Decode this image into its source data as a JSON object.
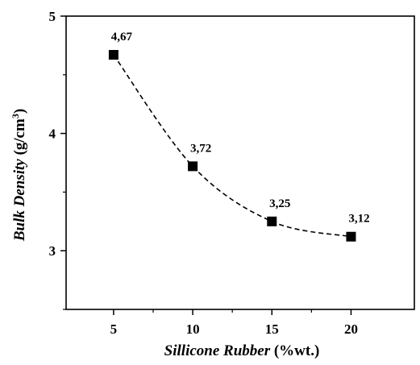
{
  "chart_data": {
    "type": "line",
    "x": [
      5,
      10,
      15,
      20
    ],
    "series": [
      {
        "values": [
          4.67,
          3.72,
          3.25,
          3.12
        ]
      }
    ],
    "data_labels": [
      "4,67",
      "3,72",
      "3,25",
      "3,12"
    ],
    "xlabel_italic": "Sillicone Rubber",
    "xlabel_unit": "(%wt.)",
    "ylabel_italic": "Bulk Density",
    "ylabel_unit": "(g/cm",
    "ylabel_sup": "3",
    "ylabel_close": ")",
    "xticks": [
      5,
      10,
      15,
      20
    ],
    "yticks": [
      3,
      4,
      5
    ],
    "xlim": [
      2,
      24
    ],
    "ylim": [
      2.5,
      5
    ],
    "marker": "square",
    "line_style": "dashed",
    "line_color": "#000000",
    "marker_color": "#000000",
    "grid": false,
    "legend": false
  }
}
